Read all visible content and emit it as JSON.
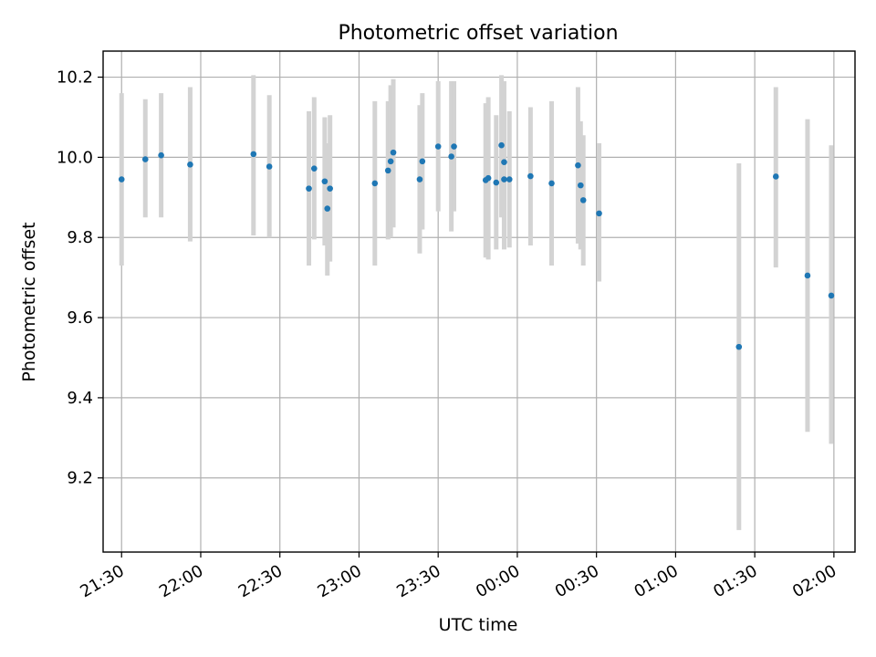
{
  "chart_data": {
    "type": "scatter",
    "title": "Photometric offset variation",
    "xlabel": "UTC time",
    "ylabel": "Photometric offset",
    "xlim": [
      "21:23",
      "02:08"
    ],
    "ylim": [
      9.015,
      10.265
    ],
    "x_ticks": [
      "21:30",
      "22:00",
      "22:30",
      "23:00",
      "23:30",
      "00:00",
      "00:30",
      "01:00",
      "01:30",
      "02:00"
    ],
    "y_ticks": [
      "9.2",
      "9.4",
      "9.6",
      "9.8",
      "10.0",
      "10.2"
    ],
    "grid": true,
    "marker_color": "#1f77b4",
    "errorbar_color": "#d3d3d3",
    "series": [
      {
        "points": [
          {
            "x": "21:30",
            "y": 9.945,
            "lo": 9.73,
            "hi": 10.16
          },
          {
            "x": "21:39",
            "y": 9.995,
            "lo": 9.85,
            "hi": 10.145
          },
          {
            "x": "21:45",
            "y": 10.005,
            "lo": 9.85,
            "hi": 10.16
          },
          {
            "x": "21:56",
            "y": 9.982,
            "lo": 9.79,
            "hi": 10.175
          },
          {
            "x": "22:20",
            "y": 10.008,
            "lo": 9.805,
            "hi": 10.205
          },
          {
            "x": "22:26",
            "y": 9.977,
            "lo": 9.8,
            "hi": 10.155
          },
          {
            "x": "22:41",
            "y": 9.922,
            "lo": 9.73,
            "hi": 10.115
          },
          {
            "x": "22:43",
            "y": 9.972,
            "lo": 9.795,
            "hi": 10.15
          },
          {
            "x": "22:47",
            "y": 9.94,
            "lo": 9.78,
            "hi": 10.1
          },
          {
            "x": "22:48",
            "y": 9.872,
            "lo": 9.705,
            "hi": 10.035
          },
          {
            "x": "22:49",
            "y": 9.922,
            "lo": 9.74,
            "hi": 10.105
          },
          {
            "x": "23:06",
            "y": 9.935,
            "lo": 9.73,
            "hi": 10.14
          },
          {
            "x": "23:11",
            "y": 9.967,
            "lo": 9.795,
            "hi": 10.14
          },
          {
            "x": "23:12",
            "y": 9.99,
            "lo": 9.8,
            "hi": 10.18
          },
          {
            "x": "23:13",
            "y": 10.012,
            "lo": 9.825,
            "hi": 10.195
          },
          {
            "x": "23:23",
            "y": 9.945,
            "lo": 9.76,
            "hi": 10.13
          },
          {
            "x": "23:24",
            "y": 9.99,
            "lo": 9.82,
            "hi": 10.16
          },
          {
            "x": "23:30",
            "y": 10.027,
            "lo": 9.865,
            "hi": 10.19
          },
          {
            "x": "23:35",
            "y": 10.002,
            "lo": 9.815,
            "hi": 10.19
          },
          {
            "x": "23:36",
            "y": 10.027,
            "lo": 9.865,
            "hi": 10.19
          },
          {
            "x": "23:48",
            "y": 9.943,
            "lo": 9.75,
            "hi": 10.135
          },
          {
            "x": "23:49",
            "y": 9.948,
            "lo": 9.745,
            "hi": 10.15
          },
          {
            "x": "23:52",
            "y": 9.937,
            "lo": 9.77,
            "hi": 10.105
          },
          {
            "x": "23:54",
            "y": 10.03,
            "lo": 9.85,
            "hi": 10.205
          },
          {
            "x": "23:55",
            "y": 9.988,
            "lo": 9.8,
            "hi": 10.19
          },
          {
            "x": "23:55",
            "y": 9.945,
            "lo": 9.77,
            "hi": 10.12
          },
          {
            "x": "23:57",
            "y": 9.945,
            "lo": 9.775,
            "hi": 10.115
          },
          {
            "x": "00:05",
            "y": 9.953,
            "lo": 9.78,
            "hi": 10.125
          },
          {
            "x": "00:13",
            "y": 9.935,
            "lo": 9.73,
            "hi": 10.14
          },
          {
            "x": "00:23",
            "y": 9.98,
            "lo": 9.785,
            "hi": 10.175
          },
          {
            "x": "00:24",
            "y": 9.93,
            "lo": 9.77,
            "hi": 10.09
          },
          {
            "x": "00:25",
            "y": 9.893,
            "lo": 9.73,
            "hi": 10.055
          },
          {
            "x": "00:31",
            "y": 9.86,
            "lo": 9.69,
            "hi": 10.035
          },
          {
            "x": "01:24",
            "y": 9.527,
            "lo": 9.07,
            "hi": 9.985
          },
          {
            "x": "01:38",
            "y": 9.952,
            "lo": 9.725,
            "hi": 10.175
          },
          {
            "x": "01:50",
            "y": 9.705,
            "lo": 9.315,
            "hi": 10.095
          },
          {
            "x": "01:59",
            "y": 9.655,
            "lo": 9.285,
            "hi": 10.03
          }
        ]
      }
    ]
  }
}
